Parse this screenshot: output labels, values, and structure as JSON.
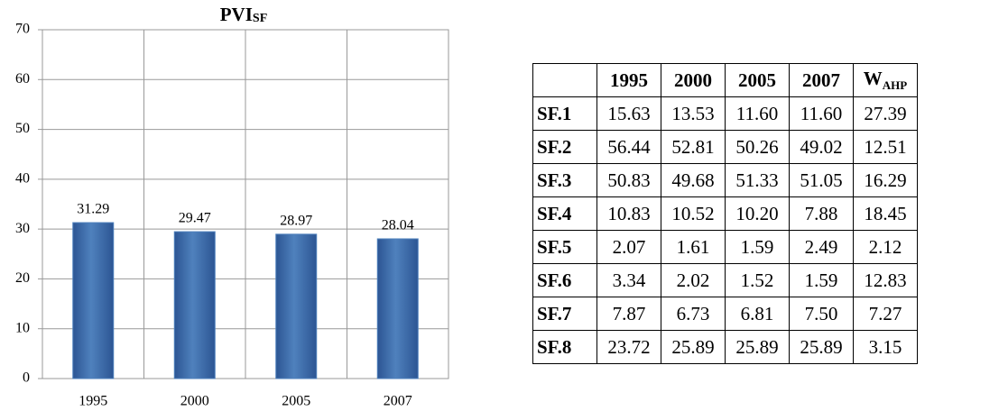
{
  "chart_data": {
    "type": "bar",
    "title": "PVI",
    "title_sub": "SF",
    "categories": [
      "1995",
      "2000",
      "2005",
      "2007"
    ],
    "values": [
      31.29,
      29.47,
      28.97,
      28.04
    ],
    "color": "#4f81bd",
    "ylim": [
      0,
      70
    ],
    "yticks": [
      0,
      10,
      20,
      30,
      40,
      50,
      60,
      70
    ],
    "grid": true
  },
  "table": {
    "columns": [
      "1995",
      "2000",
      "2005",
      "2007"
    ],
    "weight_header": {
      "text": "W",
      "sub": "AHP"
    },
    "rows": [
      {
        "label": "SF.1",
        "cells": [
          "15.63",
          "13.53",
          "11.60",
          "11.60",
          "27.39"
        ]
      },
      {
        "label": "SF.2",
        "cells": [
          "56.44",
          "52.81",
          "50.26",
          "49.02",
          "12.51"
        ]
      },
      {
        "label": "SF.3",
        "cells": [
          "50.83",
          "49.68",
          "51.33",
          "51.05",
          "16.29"
        ]
      },
      {
        "label": "SF.4",
        "cells": [
          "10.83",
          "10.52",
          "10.20",
          "7.88",
          "18.45"
        ]
      },
      {
        "label": "SF.5",
        "cells": [
          "2.07",
          "1.61",
          "1.59",
          "2.49",
          "2.12"
        ]
      },
      {
        "label": "SF.6",
        "cells": [
          "3.34",
          "2.02",
          "1.52",
          "1.59",
          "12.83"
        ]
      },
      {
        "label": "SF.7",
        "cells": [
          "7.87",
          "6.73",
          "6.81",
          "7.50",
          "7.27"
        ]
      },
      {
        "label": "SF.8",
        "cells": [
          "23.72",
          "25.89",
          "25.89",
          "25.89",
          "3.15"
        ]
      }
    ]
  }
}
